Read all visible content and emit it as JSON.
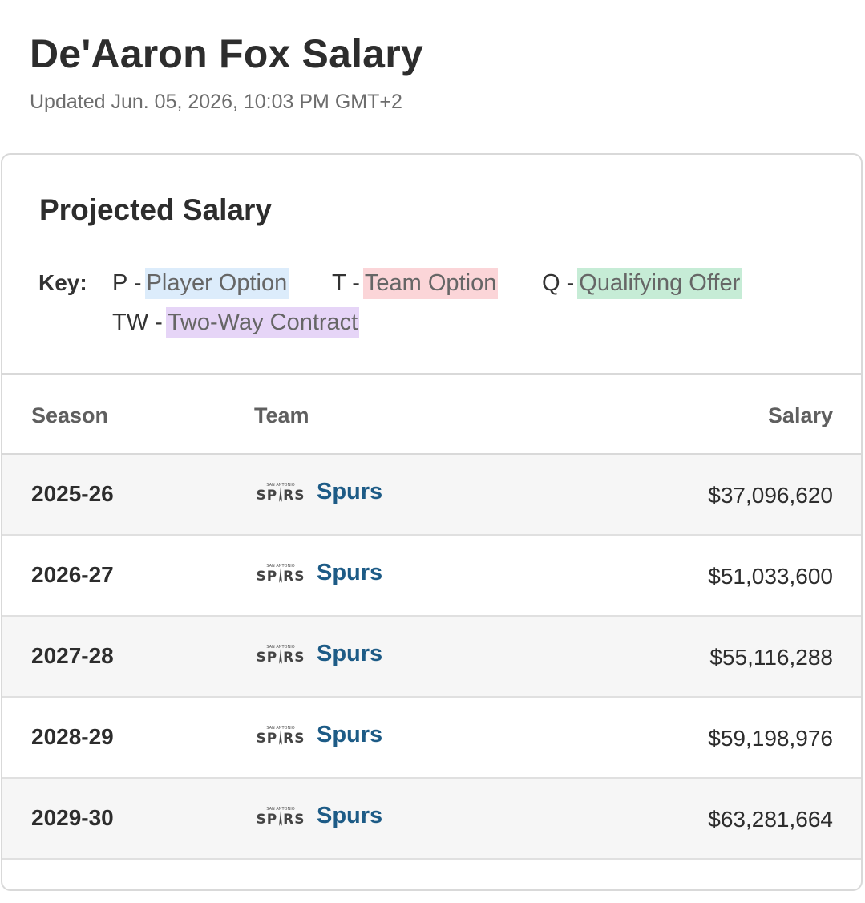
{
  "header": {
    "title": "De'Aaron Fox Salary",
    "updated": "Updated Jun. 05, 2026, 10:03 PM GMT+2"
  },
  "card": {
    "title": "Projected Salary",
    "key": {
      "label": "Key:",
      "items": [
        {
          "code": "P -",
          "desc": "Player Option",
          "color": "#dcecfb"
        },
        {
          "code": "T -",
          "desc": "Team Option",
          "color": "#fbd5d8"
        },
        {
          "code": "Q -",
          "desc": "Qualifying Offer",
          "color": "#c6ecd6"
        },
        {
          "code": "TW -",
          "desc": "Two-Way Contract",
          "color": "#e6d5f7"
        }
      ]
    }
  },
  "table": {
    "columns": {
      "season": "Season",
      "team": "Team",
      "salary": "Salary"
    },
    "rows": [
      {
        "season": "2025-26",
        "team": "Spurs",
        "salary": "$37,096,620"
      },
      {
        "season": "2026-27",
        "team": "Spurs",
        "salary": "$51,033,600"
      },
      {
        "season": "2027-28",
        "team": "Spurs",
        "salary": "$55,116,288"
      },
      {
        "season": "2028-29",
        "team": "Spurs",
        "salary": "$59,198,976"
      },
      {
        "season": "2029-30",
        "team": "Spurs",
        "salary": "$63,281,664"
      }
    ],
    "team_logo": "san-antonio-spurs-logo-icon"
  }
}
